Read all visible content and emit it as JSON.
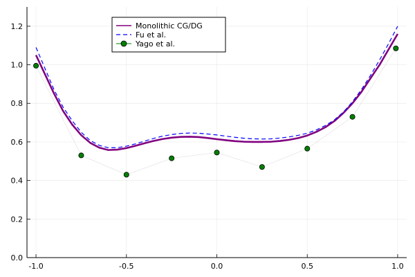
{
  "chart_data": {
    "type": "line",
    "title": "",
    "xlabel": "",
    "ylabel": "",
    "xlim": [
      -1.05,
      1.05
    ],
    "ylim": [
      0.0,
      1.3
    ],
    "x_ticks": [
      -1.0,
      -0.5,
      0.0,
      0.5,
      1.0
    ],
    "x_tick_labels": [
      "-1.0",
      "-0.5",
      "0.0",
      "0.5",
      "1.0"
    ],
    "y_ticks": [
      0.0,
      0.2,
      0.4,
      0.6,
      0.8,
      1.0,
      1.2
    ],
    "y_tick_labels": [
      "0.0",
      "0.2",
      "0.4",
      "0.6",
      "0.8",
      "1.0",
      "1.2"
    ],
    "grid": true,
    "legend_position": "top-center",
    "series": [
      {
        "name": "Monolithic CG/DG",
        "style": "solid",
        "color": "#800080",
        "x": [
          -1.0,
          -0.95,
          -0.9,
          -0.85,
          -0.8,
          -0.75,
          -0.7,
          -0.65,
          -0.6,
          -0.55,
          -0.5,
          -0.45,
          -0.4,
          -0.35,
          -0.3,
          -0.25,
          -0.2,
          -0.15,
          -0.1,
          -0.05,
          0.0,
          0.05,
          0.1,
          0.15,
          0.2,
          0.25,
          0.3,
          0.35,
          0.4,
          0.45,
          0.5,
          0.55,
          0.6,
          0.65,
          0.7,
          0.75,
          0.8,
          0.85,
          0.9,
          0.95,
          1.0
        ],
        "y": [
          1.05,
          0.95,
          0.85,
          0.76,
          0.69,
          0.635,
          0.595,
          0.57,
          0.558,
          0.56,
          0.568,
          0.58,
          0.593,
          0.605,
          0.615,
          0.622,
          0.626,
          0.627,
          0.625,
          0.62,
          0.614,
          0.609,
          0.604,
          0.601,
          0.6,
          0.6,
          0.601,
          0.605,
          0.611,
          0.62,
          0.633,
          0.652,
          0.676,
          0.708,
          0.75,
          0.8,
          0.86,
          0.93,
          1.0,
          1.08,
          1.16
        ]
      },
      {
        "name": "Fu et al.",
        "style": "dashed",
        "color": "#0000ff",
        "x": [
          -1.0,
          -0.95,
          -0.9,
          -0.85,
          -0.8,
          -0.75,
          -0.7,
          -0.65,
          -0.6,
          -0.55,
          -0.5,
          -0.45,
          -0.4,
          -0.35,
          -0.3,
          -0.25,
          -0.2,
          -0.15,
          -0.1,
          -0.05,
          0.0,
          0.05,
          0.1,
          0.15,
          0.2,
          0.25,
          0.3,
          0.35,
          0.4,
          0.45,
          0.5,
          0.55,
          0.6,
          0.65,
          0.7,
          0.75,
          0.8,
          0.85,
          0.9,
          0.95,
          1.0
        ],
        "y": [
          1.09,
          0.98,
          0.87,
          0.78,
          0.71,
          0.65,
          0.607,
          0.582,
          0.57,
          0.57,
          0.578,
          0.59,
          0.604,
          0.618,
          0.63,
          0.638,
          0.644,
          0.646,
          0.645,
          0.641,
          0.636,
          0.63,
          0.624,
          0.619,
          0.616,
          0.615,
          0.616,
          0.62,
          0.626,
          0.634,
          0.645,
          0.662,
          0.685,
          0.714,
          0.755,
          0.808,
          0.872,
          0.945,
          1.025,
          1.11,
          1.2
        ]
      },
      {
        "name": "Yago et al.",
        "style": "markers",
        "color": "#008000",
        "x": [
          -1.0,
          -0.75,
          -0.5,
          -0.25,
          0.0,
          0.25,
          0.5,
          0.75,
          0.99
        ],
        "y": [
          0.995,
          0.53,
          0.43,
          0.515,
          0.545,
          0.47,
          0.565,
          0.73,
          1.085
        ]
      }
    ]
  }
}
